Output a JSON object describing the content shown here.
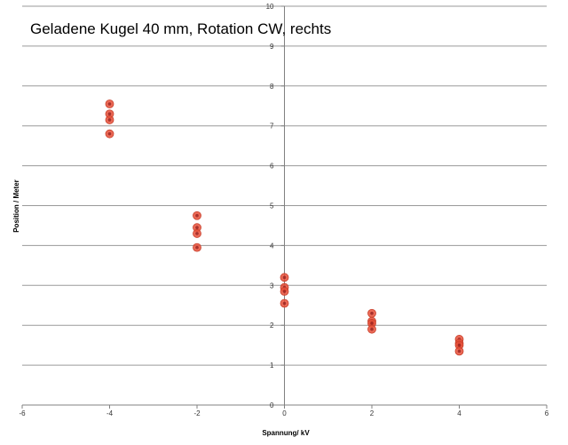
{
  "chart_data": {
    "type": "scatter",
    "title": "Geladene Kugel 40 mm, Rotation CW, rechts",
    "xlabel": "Spannung/ kV",
    "ylabel": "Position / Meter",
    "xlim": [
      -6,
      6
    ],
    "ylim": [
      0,
      10
    ],
    "x_ticks": [
      "-6",
      "-4",
      "-2",
      "0",
      "2",
      "4",
      "6"
    ],
    "y_ticks": [
      "0",
      "1",
      "2",
      "3",
      "4",
      "5",
      "6",
      "7",
      "8",
      "9",
      "10"
    ],
    "grid": "horizontal",
    "legend": "none",
    "marker_color": "#e8503a",
    "marker_dot_color": "#8b1a1a",
    "gridline_color": "#9a9a9a",
    "series": [
      {
        "points": [
          {
            "x": -4,
            "y": 7.55
          },
          {
            "x": -4,
            "y": 7.3
          },
          {
            "x": -4,
            "y": 7.15
          },
          {
            "x": -4,
            "y": 6.8
          },
          {
            "x": -2,
            "y": 4.75
          },
          {
            "x": -2,
            "y": 4.45
          },
          {
            "x": -2,
            "y": 4.3
          },
          {
            "x": -2,
            "y": 3.95
          },
          {
            "x": 0,
            "y": 3.2
          },
          {
            "x": 0,
            "y": 2.95
          },
          {
            "x": 0,
            "y": 2.85
          },
          {
            "x": 0,
            "y": 2.55
          },
          {
            "x": 2,
            "y": 2.3
          },
          {
            "x": 2,
            "y": 2.1
          },
          {
            "x": 2,
            "y": 2.05
          },
          {
            "x": 2,
            "y": 1.9
          },
          {
            "x": 4,
            "y": 1.65
          },
          {
            "x": 4,
            "y": 1.55
          },
          {
            "x": 4,
            "y": 1.5
          },
          {
            "x": 4,
            "y": 1.35
          }
        ]
      }
    ]
  }
}
